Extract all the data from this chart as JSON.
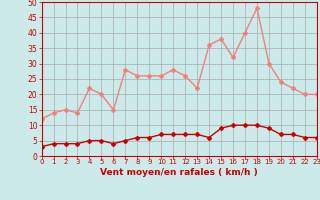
{
  "x": [
    0,
    1,
    2,
    3,
    4,
    5,
    6,
    7,
    8,
    9,
    10,
    11,
    12,
    13,
    14,
    15,
    16,
    17,
    18,
    19,
    20,
    21,
    22,
    23
  ],
  "rafales": [
    12,
    14,
    15,
    14,
    22,
    20,
    15,
    28,
    26,
    26,
    26,
    28,
    26,
    22,
    36,
    38,
    32,
    40,
    48,
    30,
    24,
    22,
    20,
    20
  ],
  "moyen": [
    3,
    4,
    4,
    4,
    5,
    5,
    4,
    5,
    6,
    6,
    7,
    7,
    7,
    7,
    6,
    9,
    10,
    10,
    10,
    9,
    7,
    7,
    6,
    6
  ],
  "bg_color": "#cceaea",
  "line_color_rafales": "#f08080",
  "line_color_moyen": "#cc0000",
  "grid_color": "#aaaaaa",
  "xlabel": "Vent moyen/en rafales ( km/h )",
  "xlabel_color": "#cc0000",
  "tick_color": "#cc0000",
  "spine_color": "#cc0000",
  "ylim": [
    0,
    50
  ],
  "yticks": [
    0,
    5,
    10,
    15,
    20,
    25,
    30,
    35,
    40,
    45,
    50
  ],
  "marker": "D",
  "marker_size": 2,
  "linewidth": 1.0
}
